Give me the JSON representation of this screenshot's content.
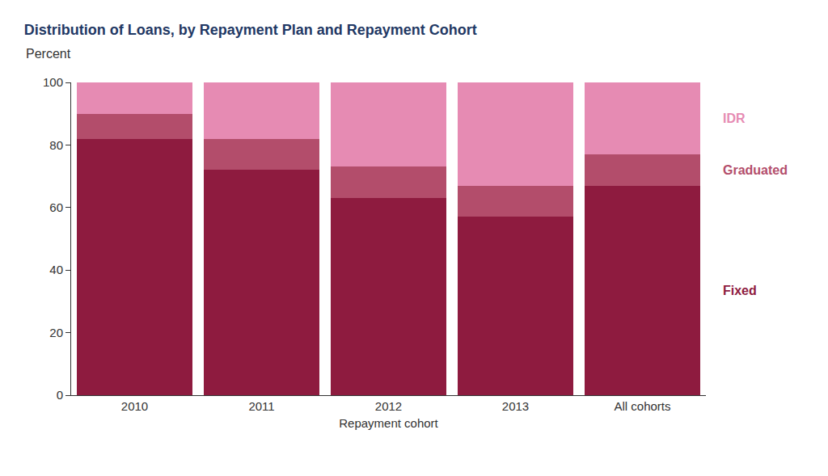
{
  "chart_data": {
    "type": "bar",
    "stacked": true,
    "title": "Distribution of Loans, by Repayment Plan and Repayment Cohort",
    "subtitle": "Percent",
    "x_label": "Repayment cohort",
    "categories": [
      "2010",
      "2011",
      "2012",
      "2013",
      "All cohorts"
    ],
    "series": [
      {
        "name": "Fixed",
        "color": "#8e1b3f",
        "values": [
          82,
          72,
          63,
          57,
          67
        ]
      },
      {
        "name": "Graduated",
        "color": "#b34d6b",
        "values": [
          8,
          10,
          10,
          10,
          10
        ]
      },
      {
        "name": "IDR",
        "color": "#e68bb3",
        "values": [
          10,
          18,
          27,
          33,
          23
        ]
      }
    ],
    "ylim": [
      0,
      100
    ],
    "yticks": [
      0,
      20,
      40,
      60,
      80,
      100
    ],
    "grid": false
  }
}
